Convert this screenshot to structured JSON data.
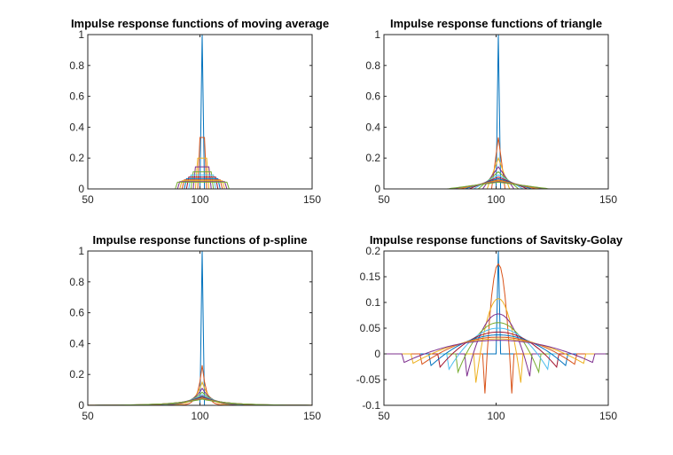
{
  "figure": {
    "background": "#ffffff"
  },
  "palette": [
    "#0072BD",
    "#D95319",
    "#EDB120",
    "#7E2F8E",
    "#77AC30",
    "#4DBEEE",
    "#A2142F"
  ],
  "chart_data": [
    {
      "type": "line",
      "id": "moving-average",
      "title": "Impulse response functions of moving average",
      "xlabel": "",
      "ylabel": "",
      "xlim": [
        50,
        150
      ],
      "ylim": [
        0,
        1
      ],
      "xticks": [
        50,
        100,
        150
      ],
      "xtick_labels": [
        "50",
        "100",
        "150"
      ],
      "yticks": [
        0,
        0.2,
        0.4,
        0.6,
        0.8,
        1
      ],
      "ytick_labels": [
        "0",
        "0.2",
        "0.4",
        "0.6",
        "0.8",
        "1"
      ],
      "grid": false,
      "center": 101,
      "kernel": "boxcar",
      "half_widths": [
        0,
        1,
        2,
        3,
        4,
        5,
        6,
        7,
        8,
        9,
        10,
        11
      ]
    },
    {
      "type": "line",
      "id": "triangle",
      "title": "Impulse response functions of triangle",
      "xlabel": "",
      "ylabel": "",
      "xlim": [
        50,
        150
      ],
      "ylim": [
        0,
        1
      ],
      "xticks": [
        50,
        100,
        150
      ],
      "xtick_labels": [
        "50",
        "100",
        "150"
      ],
      "yticks": [
        0,
        0.2,
        0.4,
        0.6,
        0.8,
        1
      ],
      "ytick_labels": [
        "0",
        "0.2",
        "0.4",
        "0.6",
        "0.8",
        "1"
      ],
      "grid": false,
      "center": 101,
      "kernel": "triangle",
      "half_widths": [
        0,
        2,
        4,
        6,
        8,
        10,
        12,
        14,
        16,
        18,
        20,
        22
      ]
    },
    {
      "type": "line",
      "id": "p-spline",
      "title": "Impulse response functions of p-spline",
      "xlabel": "",
      "ylabel": "",
      "xlim": [
        50,
        150
      ],
      "ylim": [
        0,
        1
      ],
      "xticks": [
        50,
        100,
        150
      ],
      "xtick_labels": [
        "50",
        "100",
        "150"
      ],
      "yticks": [
        0,
        0.2,
        0.4,
        0.6,
        0.8,
        1
      ],
      "ytick_labels": [
        "0",
        "0.2",
        "0.4",
        "0.6",
        "0.8",
        "1"
      ],
      "grid": false,
      "center": 101,
      "kernel": "laplace",
      "peaks": [
        1,
        0.26,
        0.15,
        0.11,
        0.085,
        0.07,
        0.06,
        0.055,
        0.05,
        0.045,
        0.042,
        0.04
      ]
    },
    {
      "type": "line",
      "id": "savitsky-golay",
      "title": "Impulse response functions of Savitsky-Golay",
      "xlabel": "",
      "ylabel": "",
      "xlim": [
        50,
        150
      ],
      "ylim": [
        -0.1,
        0.2
      ],
      "xticks": [
        50,
        100,
        150
      ],
      "xtick_labels": [
        "50",
        "100",
        "150"
      ],
      "yticks": [
        -0.1,
        -0.05,
        0,
        0.05,
        0.1,
        0.15,
        0.2
      ],
      "ytick_labels": [
        "-0.1",
        "-0.05",
        "0",
        "0.05",
        "0.1",
        "0.15",
        "0.2"
      ],
      "grid": false,
      "center": 101,
      "kernel": "savgol-quadratic",
      "half_widths": [
        0,
        6,
        10,
        14,
        18,
        22,
        26,
        30,
        34,
        38,
        42
      ]
    }
  ]
}
